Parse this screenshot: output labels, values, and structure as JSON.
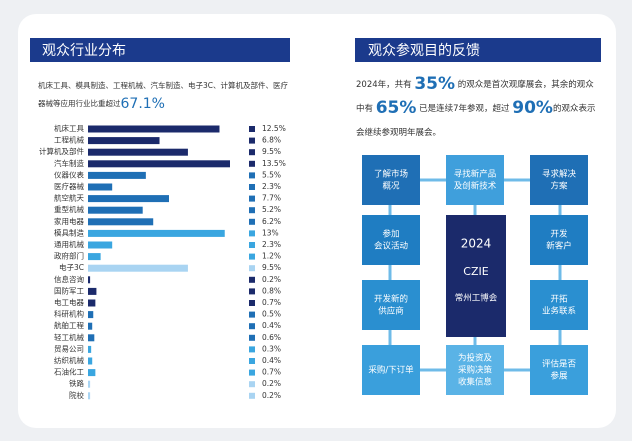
{
  "chart_data": {
    "type": "bar",
    "orientation": "horizontal",
    "title": "观众行业分布",
    "intro": [
      "机床工具、模具制造、工程机械、汽车制造、电子3C、计算机及部件、医疗",
      "器械等应用行业比重超过"
    ],
    "intro_highlight": "67.1%",
    "categories": [
      "机床工具",
      "工程机械",
      "计算机及部件",
      "汽车制造",
      "仪器仪表",
      "医疗器械",
      "航空航天",
      "重型机械",
      "家用电器",
      "模具制造",
      "通用机械",
      "政府部门",
      "电子3C",
      "信息咨询",
      "国防军工",
      "电工电器",
      "科研机构",
      "航舶工程",
      "轻工机械",
      "贸易公司",
      "纺织机械",
      "石油化工",
      "铁路",
      "院校"
    ],
    "values": [
      12.5,
      6.8,
      9.5,
      13.5,
      5.5,
      2.3,
      7.7,
      5.2,
      6.2,
      13,
      2.3,
      1.2,
      9.5,
      0.2,
      0.8,
      0.7,
      0.5,
      0.4,
      0.6,
      0.3,
      0.4,
      0.7,
      0.2,
      0.2
    ],
    "value_labels": [
      "12.5%",
      "6.8%",
      "9.5%",
      "13.5%",
      "5.5%",
      "2.3%",
      "7.7%",
      "5.2%",
      "6.2%",
      "13%",
      "2.3%",
      "1.2%",
      "9.5%",
      "0.2%",
      "0.8%",
      "0.7%",
      "0.5%",
      "0.4%",
      "0.6%",
      "0.3%",
      "0.4%",
      "0.7%",
      "0.2%",
      "0.2%"
    ],
    "colors": [
      "#1b2a6b",
      "#1b2a6b",
      "#1b2a6b",
      "#1b2a6b",
      "#1f6fb5",
      "#1f6fb5",
      "#1f6fb5",
      "#1f6fb5",
      "#1f6fb5",
      "#3aa6e0",
      "#3aa6e0",
      "#3aa6e0",
      "#a9d4f2",
      "#1b2a6b",
      "#1b2a6b",
      "#1b2a6b",
      "#1f6fb5",
      "#1f6fb5",
      "#1f6fb5",
      "#3aa6e0",
      "#3aa6e0",
      "#3aa6e0",
      "#a9d4f2",
      "#a9d4f2"
    ]
  },
  "feedback": {
    "title": "观众参观目的反馈",
    "paragraph": [
      [
        {
          "text": "2024年，共有 "
        },
        {
          "em": "35%"
        },
        {
          "text": " 的观众是首次观摩展会，其余的观众"
        }
      ],
      [
        {
          "text": "中有 "
        },
        {
          "em": "65%"
        },
        {
          "text": " 已是连续7年参观，超过 "
        },
        {
          "em": "90%"
        },
        {
          "text": "的观众表示"
        }
      ],
      [
        {
          "text": "会继续参观明年展会。"
        }
      ]
    ],
    "center": [
      "2024",
      "CZIE",
      "常州工博会"
    ],
    "nodes": [
      {
        "label": [
          "了解市场",
          "概况"
        ]
      },
      {
        "label": [
          "寻找新产品",
          "及创新技术"
        ]
      },
      {
        "label": [
          "寻求解决",
          "方案"
        ]
      },
      {
        "label": [
          "参加",
          "会议活动"
        ]
      },
      {
        "label": [
          "开发",
          "新客户"
        ]
      },
      {
        "label": [
          "开发新的",
          "供应商"
        ]
      },
      {
        "label": [
          "开拓",
          "业务联系"
        ]
      },
      {
        "label": [
          "采购/下订单"
        ]
      },
      {
        "label": [
          "为投资及",
          "采购决策",
          "收集信息"
        ]
      },
      {
        "label": [
          "评估是否",
          "参展"
        ]
      }
    ]
  }
}
